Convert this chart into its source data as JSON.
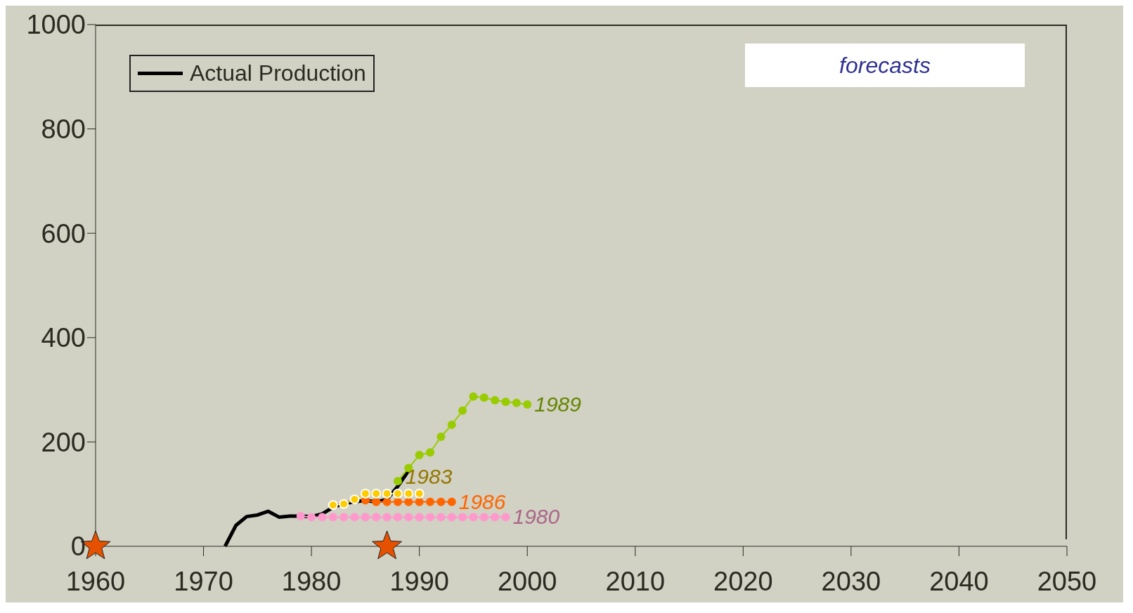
{
  "chart_data": {
    "type": "line",
    "xlim": [
      1960,
      2050
    ],
    "xticks": [
      1960,
      1970,
      1980,
      1990,
      2000,
      2010,
      2020,
      2030,
      2040,
      2050
    ],
    "ylim": [
      0,
      1000
    ],
    "yticks": [
      0,
      200,
      400,
      600,
      800,
      1000
    ],
    "grid": false,
    "legend": "top left",
    "annotations": [
      "forecasts"
    ],
    "series": [
      {
        "name": "Actual Production",
        "color": "#000000",
        "marker": "none",
        "x": [
          1972,
          1973,
          1974,
          1975,
          1976,
          1977,
          1978,
          1979,
          1980,
          1981,
          1982,
          1983,
          1984,
          1985,
          1986,
          1987,
          1988,
          1989
        ],
        "values": [
          0,
          40,
          57,
          60,
          67,
          56,
          58,
          58,
          57,
          62,
          75,
          82,
          85,
          88,
          85,
          90,
          115,
          145
        ]
      },
      {
        "name": "1980",
        "color": "#ff99cc",
        "marker": "circle",
        "x": [
          1979,
          1980,
          1981,
          1982,
          1983,
          1984,
          1985,
          1986,
          1987,
          1988,
          1989,
          1990,
          1991,
          1992,
          1993,
          1994,
          1995,
          1996,
          1997,
          1998
        ],
        "values": [
          58,
          56,
          56,
          56,
          56,
          56,
          56,
          56,
          56,
          56,
          56,
          56,
          56,
          56,
          56,
          56,
          56,
          56,
          56,
          56
        ]
      },
      {
        "name": "1986",
        "color": "#ff6600",
        "marker": "circle",
        "x": [
          1985,
          1986,
          1987,
          1988,
          1989,
          1990,
          1991,
          1992,
          1993
        ],
        "values": [
          88,
          85,
          85,
          85,
          85,
          85,
          85,
          85,
          85
        ]
      },
      {
        "name": "1983",
        "color": "#ffcc00",
        "marker": "circle",
        "x": [
          1982,
          1983,
          1984,
          1985,
          1986,
          1987,
          1988,
          1989,
          1990
        ],
        "values": [
          79,
          81,
          90,
          101,
          101,
          101,
          101,
          101,
          101
        ]
      },
      {
        "name": "1989",
        "color": "#99cc00",
        "marker": "circle",
        "x": [
          1988,
          1989,
          1990,
          1991,
          1992,
          1993,
          1994,
          1995,
          1996,
          1997,
          1998,
          1999,
          2000
        ],
        "values": [
          125,
          150,
          175,
          180,
          210,
          233,
          260,
          287,
          285,
          280,
          277,
          275,
          272
        ]
      },
      {
        "type": "scatter",
        "color": "#e65100",
        "marker": "star",
        "x": [
          1960,
          1987
        ],
        "values": [
          0,
          0
        ]
      }
    ]
  }
}
